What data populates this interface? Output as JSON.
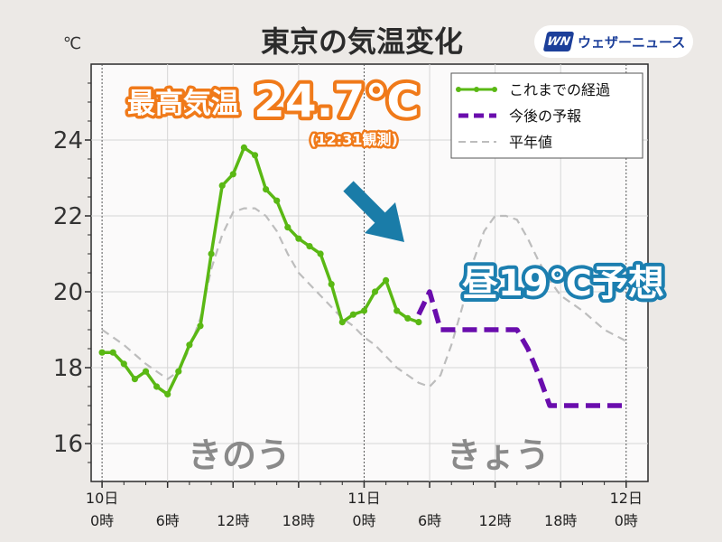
{
  "header": {
    "title": "東京の気温変化",
    "unit": "℃",
    "brand_mark": "WN",
    "brand_text": "ウェザーニュース"
  },
  "callouts": {
    "max_label": "最高気温",
    "max_value": "24.7℃",
    "max_time": "(12:31観測)",
    "noon_forecast": "昼19℃予想",
    "day_left": "きのう",
    "day_right": "きょう"
  },
  "colors": {
    "observed": "#5ab814",
    "forecast": "#6a0dad",
    "normal": "#bdbdbd",
    "callout_orange": "#f07a1a",
    "callout_blue": "#1c7fb0",
    "arrow": "#1a7ca8"
  },
  "chart_data": {
    "type": "line",
    "title": "東京の気温変化",
    "ylabel": "℃",
    "ylim": [
      15,
      26
    ],
    "xlim": [
      -1,
      50
    ],
    "x_unit": "hours from 10日 0時",
    "y_ticks": [
      "16",
      "18",
      "20",
      "22",
      "24"
    ],
    "y_tick_values": [
      16,
      18,
      20,
      22,
      24
    ],
    "x_ticks": [
      {
        "x": 0,
        "line1": "10日",
        "line2": "0時"
      },
      {
        "x": 6,
        "line1": "",
        "line2": "6時"
      },
      {
        "x": 12,
        "line1": "",
        "line2": "12時"
      },
      {
        "x": 18,
        "line1": "",
        "line2": "18時"
      },
      {
        "x": 24,
        "line1": "11日",
        "line2": "0時"
      },
      {
        "x": 30,
        "line1": "",
        "line2": "6時"
      },
      {
        "x": 36,
        "line1": "",
        "line2": "12時"
      },
      {
        "x": 42,
        "line1": "",
        "line2": "18時"
      },
      {
        "x": 48,
        "line1": "12日",
        "line2": "0時"
      }
    ],
    "legend": {
      "placement": "top-right",
      "entries": [
        "これまでの経過",
        "今後の予報",
        "平年値"
      ]
    },
    "series": [
      {
        "name": "これまでの経過",
        "style": "solid-markers",
        "points": [
          [
            0,
            18.4
          ],
          [
            1,
            18.4
          ],
          [
            2,
            18.1
          ],
          [
            3,
            17.7
          ],
          [
            4,
            17.9
          ],
          [
            5,
            17.5
          ],
          [
            6,
            17.3
          ],
          [
            7,
            17.9
          ],
          [
            8,
            18.6
          ],
          [
            9,
            19.1
          ],
          [
            10,
            21.0
          ],
          [
            11,
            22.8
          ],
          [
            12,
            23.1
          ],
          [
            13,
            23.8
          ],
          [
            14,
            23.6
          ],
          [
            15,
            22.7
          ],
          [
            16,
            22.4
          ],
          [
            17,
            21.7
          ],
          [
            18,
            21.4
          ],
          [
            19,
            21.2
          ],
          [
            20,
            21.0
          ],
          [
            21,
            20.2
          ],
          [
            22,
            19.2
          ],
          [
            23,
            19.4
          ],
          [
            24,
            19.5
          ],
          [
            25,
            20.0
          ],
          [
            26,
            20.3
          ],
          [
            27,
            19.5
          ],
          [
            28,
            19.3
          ],
          [
            29,
            19.2
          ]
        ]
      },
      {
        "name": "今後の予報",
        "style": "dashed-thick",
        "points": [
          [
            29,
            19.4
          ],
          [
            30,
            20.0
          ],
          [
            31,
            19.0
          ],
          [
            32,
            19.0
          ],
          [
            35,
            19.0
          ],
          [
            38,
            19.0
          ],
          [
            39,
            18.5
          ],
          [
            40,
            17.8
          ],
          [
            41,
            17.0
          ],
          [
            44,
            17.0
          ],
          [
            48,
            17.0
          ]
        ]
      },
      {
        "name": "平年値",
        "style": "dashed-thin",
        "points": [
          [
            0,
            19.0
          ],
          [
            2,
            18.6
          ],
          [
            4,
            18.1
          ],
          [
            6,
            17.7
          ],
          [
            7,
            17.9
          ],
          [
            8,
            18.5
          ],
          [
            9,
            19.3
          ],
          [
            10,
            20.6
          ],
          [
            11,
            21.5
          ],
          [
            12,
            22.1
          ],
          [
            13,
            22.2
          ],
          [
            14,
            22.2
          ],
          [
            15,
            22.0
          ],
          [
            16,
            21.6
          ],
          [
            17,
            21.0
          ],
          [
            18,
            20.5
          ],
          [
            19,
            20.2
          ],
          [
            20,
            19.9
          ],
          [
            21,
            19.6
          ],
          [
            22,
            19.3
          ],
          [
            23,
            19.1
          ],
          [
            24,
            18.8
          ],
          [
            25,
            18.6
          ],
          [
            26,
            18.3
          ],
          [
            27,
            18.0
          ],
          [
            28,
            17.8
          ],
          [
            29,
            17.6
          ],
          [
            30,
            17.5
          ],
          [
            31,
            17.8
          ],
          [
            32,
            18.6
          ],
          [
            33,
            19.6
          ],
          [
            34,
            20.8
          ],
          [
            35,
            21.6
          ],
          [
            36,
            22.0
          ],
          [
            37,
            22.0
          ],
          [
            38,
            21.9
          ],
          [
            39,
            21.4
          ],
          [
            40,
            20.8
          ],
          [
            41,
            20.3
          ],
          [
            42,
            19.9
          ],
          [
            44,
            19.5
          ],
          [
            46,
            19.0
          ],
          [
            48,
            18.7
          ]
        ]
      }
    ],
    "annotations": [
      {
        "text": "最高気温 24.7℃",
        "note": "(12:31観測)"
      },
      {
        "text": "昼19℃予想"
      },
      {
        "text": "きのう"
      },
      {
        "text": "きょう"
      }
    ]
  }
}
